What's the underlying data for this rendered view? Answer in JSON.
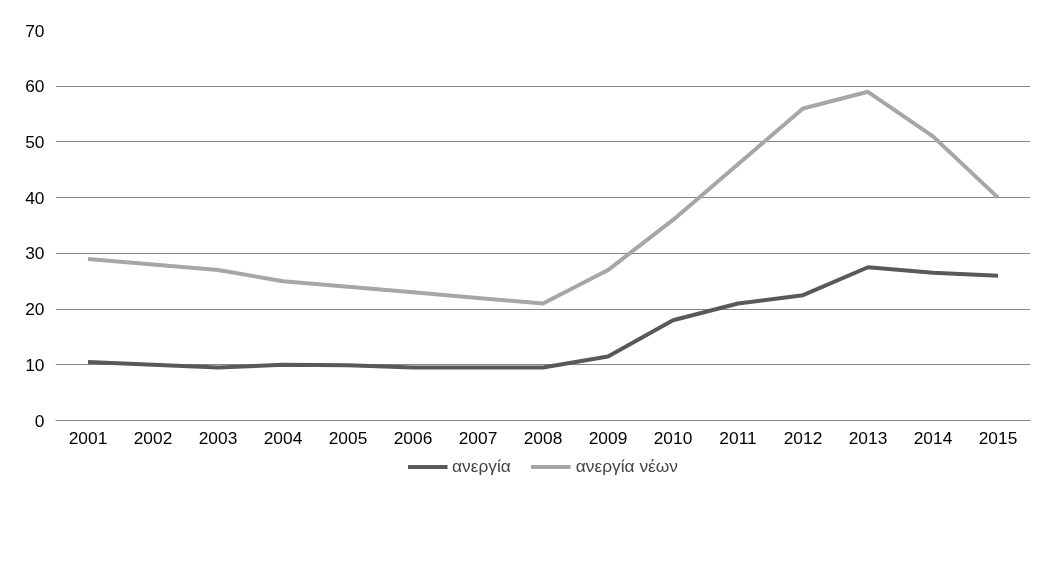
{
  "chart_data": {
    "type": "line",
    "categories": [
      "2001",
      "2002",
      "2003",
      "2004",
      "2005",
      "2006",
      "2007",
      "2008",
      "2009",
      "2010",
      "2011",
      "2012",
      "2013",
      "2014",
      "2015"
    ],
    "series": [
      {
        "name": "ανεργία",
        "color": "#595959",
        "values": [
          10.5,
          10,
          9.5,
          10,
          9.9,
          9.5,
          9.5,
          9.5,
          11.5,
          18,
          21,
          22.5,
          27.5,
          26.5,
          26
        ]
      },
      {
        "name": "ανεργία νέων",
        "color": "#a6a6a6",
        "values": [
          29,
          28,
          27,
          25,
          24,
          23,
          22,
          21,
          27,
          36,
          46,
          56,
          59,
          51,
          40
        ]
      }
    ],
    "ylim": [
      0,
      70
    ],
    "yticks": [
      0,
      10,
      20,
      30,
      40,
      50,
      60,
      70
    ],
    "grid": "y",
    "legend": "bottom",
    "marker": "none",
    "line_style": "solid"
  }
}
